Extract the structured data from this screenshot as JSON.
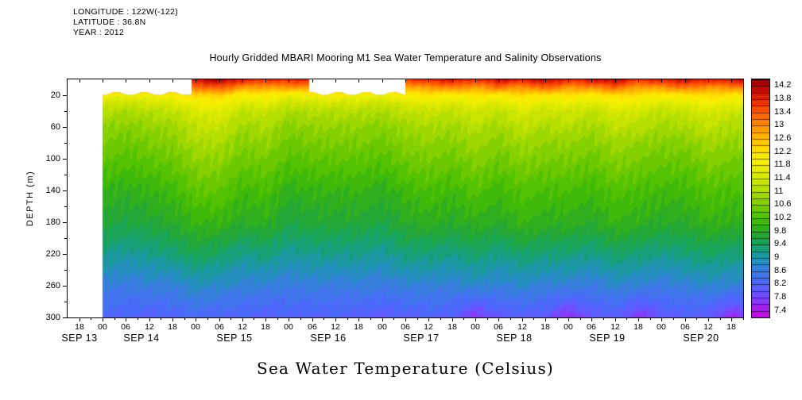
{
  "meta": {
    "longitude_line": "LONGITUDE : 122W(-122)",
    "latitude_line": "LATITUDE : 36.8N",
    "year_line": "YEAR : 2012"
  },
  "chart_data": {
    "type": "heatmap",
    "title": "Hourly Gridded MBARI Mooring M1 Sea Water Temperature and Salinity Observations",
    "variable_label": "Sea Water Temperature (Celsius)",
    "ylabel": "DEPTH (m)",
    "units": "Celsius",
    "depth_range_m": [
      0,
      300
    ],
    "y_ticks": [
      20,
      60,
      100,
      140,
      180,
      220,
      260,
      300
    ],
    "y_minor_ticks": [
      40,
      80,
      120,
      160,
      200,
      240,
      280
    ],
    "time_range_days": [
      13.625,
      20.875
    ],
    "x_tick_start_day": 13.75,
    "x_tick_step_days": 0.25,
    "x_hour_tick_labels": [
      "18",
      "00",
      "06",
      "12",
      "18",
      "00",
      "06",
      "12",
      "18",
      "00",
      "06",
      "12",
      "18",
      "00",
      "06",
      "12",
      "18",
      "00",
      "06",
      "12",
      "18",
      "00",
      "06",
      "12",
      "18",
      "00",
      "06",
      "12",
      "18"
    ],
    "x_date_labels": [
      "SEP 13",
      "SEP 14",
      "SEP 15",
      "SEP 16",
      "SEP 17",
      "SEP 18",
      "SEP 19",
      "SEP 20"
    ],
    "data_start_day": 14.0,
    "surface_segments_days": [
      [
        14.95,
        16.21
      ],
      [
        17.25,
        20.875
      ]
    ],
    "surface_mask_depth_m": 17,
    "colorbar": {
      "labels": [
        "14.2",
        "13.8",
        "13.4",
        "13",
        "12.6",
        "12.2",
        "11.8",
        "11.4",
        "11",
        "10.6",
        "10.2",
        "9.8",
        "9.4",
        "9",
        "8.6",
        "8.2",
        "7.8",
        "7.4"
      ],
      "temp_min": 7.2,
      "temp_max": 14.4,
      "label_step": 0.4,
      "quantize_step": 0.2
    },
    "palette_anchors": [
      [
        7.0,
        "#e100e1"
      ],
      [
        7.4,
        "#b414e6"
      ],
      [
        7.8,
        "#7846ff"
      ],
      [
        8.2,
        "#5064ff"
      ],
      [
        8.6,
        "#3c78e6"
      ],
      [
        9.0,
        "#1e96b4"
      ],
      [
        9.4,
        "#14a064"
      ],
      [
        9.8,
        "#28aa28"
      ],
      [
        10.2,
        "#46be00"
      ],
      [
        10.6,
        "#78cd00"
      ],
      [
        11.0,
        "#aadc00"
      ],
      [
        11.4,
        "#d2e600"
      ],
      [
        11.8,
        "#f0f000"
      ],
      [
        12.2,
        "#ffe600"
      ],
      [
        12.6,
        "#ffbe00"
      ],
      [
        13.0,
        "#ff9100"
      ],
      [
        13.4,
        "#ff5a00"
      ],
      [
        13.8,
        "#e62800"
      ],
      [
        14.2,
        "#b40000"
      ],
      [
        14.6,
        "#820000"
      ]
    ],
    "grid": {
      "time_days": [
        13.75,
        14.0,
        14.25,
        14.5,
        14.75,
        15.0,
        15.25,
        15.5,
        15.75,
        16.0,
        16.25,
        16.5,
        16.75,
        17.0,
        17.25,
        17.5,
        17.75,
        18.0,
        18.25,
        18.5,
        18.75,
        19.0,
        19.25,
        19.5,
        19.75,
        20.0,
        20.25,
        20.5,
        20.75,
        21.0
      ],
      "depths_m": [
        0,
        10,
        20,
        30,
        40,
        60,
        80,
        100,
        140,
        180,
        220,
        260,
        300
      ],
      "temps_c": [
        [
          null,
          null,
          null,
          null,
          null,
          14.0,
          14.3,
          13.9,
          13.7,
          13.8,
          null,
          null,
          null,
          null,
          13.6,
          13.8,
          14.0,
          13.7,
          14.1,
          13.9,
          14.2,
          13.8,
          14.0,
          14.2,
          13.7,
          13.9,
          14.1,
          13.8,
          14.0,
          14.2
        ],
        [
          null,
          null,
          null,
          null,
          null,
          13.2,
          13.4,
          12.9,
          12.8,
          12.9,
          null,
          null,
          null,
          null,
          12.7,
          12.9,
          13.1,
          12.8,
          13.2,
          12.9,
          13.3,
          12.9,
          13.0,
          13.3,
          12.8,
          12.9,
          13.2,
          12.9,
          13.0,
          13.2
        ],
        [
          null,
          11.8,
          11.7,
          11.8,
          11.9,
          12.3,
          12.4,
          11.9,
          12.1,
          11.7,
          11.8,
          11.9,
          11.8,
          11.7,
          12.0,
          12.1,
          11.9,
          12.2,
          12.0,
          12.3,
          12.1,
          12.2,
          12.0,
          12.3,
          12.2,
          12.0,
          12.1,
          12.3,
          12.1,
          12.2
        ],
        [
          null,
          11.4,
          11.3,
          11.4,
          11.5,
          11.8,
          11.9,
          11.5,
          11.6,
          11.3,
          11.4,
          11.4,
          11.4,
          11.3,
          11.5,
          11.6,
          11.5,
          11.7,
          11.5,
          11.8,
          11.6,
          11.7,
          11.5,
          11.8,
          11.7,
          11.5,
          11.6,
          11.8,
          11.6,
          11.7
        ],
        [
          null,
          11.1,
          11.0,
          11.1,
          11.2,
          11.5,
          11.6,
          11.2,
          11.3,
          11.0,
          11.1,
          11.1,
          11.1,
          11.0,
          11.2,
          11.3,
          11.2,
          11.4,
          11.2,
          11.5,
          11.3,
          11.4,
          11.2,
          11.5,
          11.4,
          11.2,
          11.3,
          11.5,
          11.3,
          11.4
        ],
        [
          null,
          10.8,
          10.7,
          10.8,
          10.9,
          11.2,
          11.3,
          10.9,
          11.0,
          10.7,
          10.8,
          10.8,
          10.8,
          10.7,
          10.9,
          11.0,
          10.9,
          11.1,
          10.9,
          11.2,
          11.0,
          11.1,
          10.9,
          11.2,
          11.1,
          10.9,
          11.0,
          11.2,
          11.0,
          11.1
        ],
        [
          null,
          10.6,
          10.5,
          10.6,
          10.7,
          11.0,
          11.0,
          10.7,
          10.8,
          10.5,
          10.6,
          10.6,
          10.6,
          10.5,
          10.7,
          10.8,
          10.7,
          10.9,
          10.7,
          10.9,
          10.8,
          10.8,
          10.7,
          10.9,
          10.8,
          10.7,
          10.7,
          10.9,
          10.8,
          10.8
        ],
        [
          null,
          10.4,
          10.3,
          10.4,
          10.5,
          10.8,
          10.8,
          10.5,
          10.6,
          10.3,
          10.4,
          10.4,
          10.4,
          10.3,
          10.5,
          10.6,
          10.5,
          10.7,
          10.5,
          10.7,
          10.6,
          10.6,
          10.5,
          10.7,
          10.6,
          10.5,
          10.5,
          10.7,
          10.6,
          10.6
        ],
        [
          null,
          10.0,
          9.9,
          10.0,
          10.1,
          10.4,
          10.4,
          10.1,
          10.2,
          9.9,
          10.0,
          10.0,
          10.0,
          9.9,
          10.1,
          10.2,
          10.1,
          10.3,
          10.1,
          10.3,
          10.2,
          10.2,
          10.1,
          10.3,
          10.2,
          10.1,
          10.1,
          10.3,
          10.2,
          10.2
        ],
        [
          null,
          9.7,
          9.6,
          9.7,
          9.8,
          10.0,
          10.0,
          9.8,
          9.9,
          9.6,
          9.7,
          9.7,
          9.7,
          9.6,
          9.8,
          9.9,
          9.8,
          9.9,
          9.8,
          10.0,
          9.9,
          9.9,
          9.8,
          10.0,
          9.9,
          9.8,
          9.8,
          10.0,
          9.9,
          9.9
        ],
        [
          null,
          9.2,
          9.1,
          9.2,
          9.3,
          9.5,
          9.4,
          9.2,
          9.3,
          9.1,
          9.2,
          9.2,
          9.2,
          9.1,
          9.3,
          9.3,
          9.2,
          9.4,
          9.2,
          9.4,
          9.3,
          9.3,
          9.2,
          9.4,
          9.3,
          9.2,
          9.3,
          9.4,
          9.3,
          9.3
        ],
        [
          null,
          8.7,
          8.6,
          8.7,
          8.7,
          8.9,
          8.8,
          8.7,
          8.7,
          8.6,
          8.7,
          8.6,
          8.7,
          8.6,
          8.7,
          8.7,
          8.7,
          8.8,
          8.7,
          8.8,
          8.7,
          8.7,
          8.6,
          8.8,
          8.7,
          8.6,
          8.7,
          8.8,
          8.7,
          8.7
        ],
        [
          null,
          8.2,
          8.2,
          8.1,
          8.2,
          8.3,
          8.2,
          8.2,
          8.1,
          8.2,
          8.1,
          8.2,
          8.1,
          8.0,
          8.1,
          8.2,
          8.1,
          7.6,
          8.0,
          8.1,
          8.0,
          7.5,
          8.0,
          8.1,
          7.6,
          8.0,
          8.1,
          8.0,
          7.5,
          7.8
        ]
      ]
    }
  }
}
